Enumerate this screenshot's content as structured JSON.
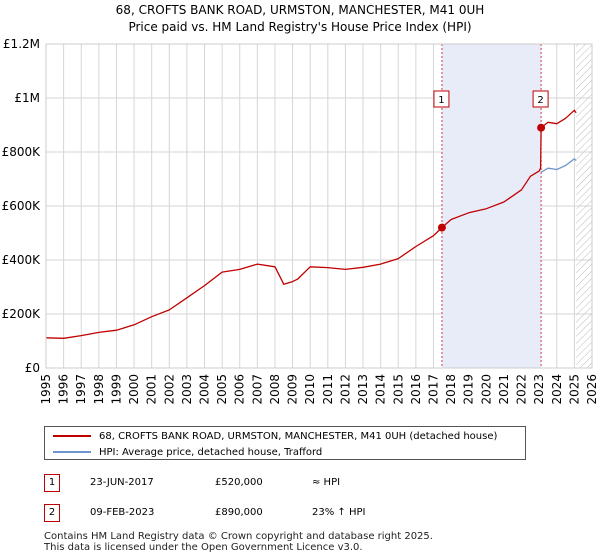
{
  "title_line1": "68, CROFTS BANK ROAD, URMSTON, MANCHESTER, M41 0UH",
  "title_line2": "Price paid vs. HM Land Registry's House Price Index (HPI)",
  "chart_data": {
    "type": "line",
    "title": "68, CROFTS BANK ROAD, URMSTON, MANCHESTER, M41 0UH / Price paid vs. HM Land Registry's House Price Index (HPI)",
    "xlabel": "",
    "ylabel": "",
    "xlim": [
      1995,
      2026
    ],
    "ylim": [
      0,
      1200000
    ],
    "grid": true,
    "x_ticks": [
      "1995",
      "1996",
      "1997",
      "1998",
      "1999",
      "2000",
      "2001",
      "2002",
      "2003",
      "2004",
      "2005",
      "2006",
      "2007",
      "2008",
      "2009",
      "2010",
      "2011",
      "2012",
      "2013",
      "2014",
      "2015",
      "2016",
      "2017",
      "2018",
      "2019",
      "2020",
      "2021",
      "2022",
      "2023",
      "2024",
      "2025",
      "2026"
    ],
    "y_ticks": [
      {
        "value": 0,
        "label": "£0"
      },
      {
        "value": 200000,
        "label": "£200K"
      },
      {
        "value": 400000,
        "label": "£400K"
      },
      {
        "value": 600000,
        "label": "£600K"
      },
      {
        "value": 800000,
        "label": "£800K"
      },
      {
        "value": 1000000,
        "label": "£1M"
      },
      {
        "value": 1200000,
        "label": "£1.2M"
      }
    ],
    "shaded_region": [
      2017.48,
      2023.11
    ],
    "hatched_region": [
      2025.1,
      2026
    ],
    "series": [
      {
        "name": "68, CROFTS BANK ROAD, URMSTON, MANCHESTER, M41 0UH (detached house)",
        "color": "#c00000",
        "x": [
          1995,
          1996,
          1997,
          1998,
          1999,
          2000,
          2001,
          2002,
          2003,
          2004,
          2005,
          2006,
          2007,
          2008,
          2008.5,
          2009,
          2009.3,
          2010,
          2011,
          2012,
          2013,
          2014,
          2015,
          2016,
          2017,
          2017.48,
          2018,
          2019,
          2020,
          2021,
          2022,
          2022.5,
          2023.0,
          2023.08,
          2023.11,
          2023.5,
          2024,
          2024.5,
          2025.0,
          2025.1
        ],
        "y": [
          112000,
          110000,
          120000,
          132000,
          140000,
          160000,
          190000,
          215000,
          260000,
          305000,
          355000,
          365000,
          385000,
          375000,
          310000,
          320000,
          330000,
          375000,
          372000,
          365000,
          373000,
          385000,
          405000,
          450000,
          490000,
          520000,
          550000,
          575000,
          590000,
          615000,
          660000,
          710000,
          730000,
          740000,
          890000,
          910000,
          905000,
          925000,
          955000,
          945000
        ]
      },
      {
        "name": "HPI: Average price, detached house, Trafford",
        "color": "#6f96cc",
        "x": [
          2023.11,
          2023.5,
          2024,
          2024.5,
          2025.0,
          2025.1
        ],
        "y": [
          725000,
          740000,
          735000,
          750000,
          775000,
          768000
        ]
      }
    ],
    "sales": [
      {
        "label": "1",
        "x": 2017.48,
        "y": 520000
      },
      {
        "label": "2",
        "x": 2023.11,
        "y": 890000
      }
    ]
  },
  "legend": {
    "entries": [
      {
        "label": "68, CROFTS BANK ROAD, URMSTON, MANCHESTER, M41 0UH (detached house)",
        "color": "#c00000"
      },
      {
        "label": "HPI: Average price, detached house, Trafford",
        "color": "#6f96cc"
      }
    ]
  },
  "transactions": [
    {
      "num": "1",
      "date": "23-JUN-2017",
      "price": "£520,000",
      "relation": "≈ HPI"
    },
    {
      "num": "2",
      "date": "09-FEB-2023",
      "price": "£890,000",
      "relation": "23% ↑ HPI"
    }
  ],
  "footer": {
    "line1": "Contains HM Land Registry data © Crown copyright and database right 2025.",
    "line2": "This data is licensed under the Open Government Licence v3.0."
  }
}
